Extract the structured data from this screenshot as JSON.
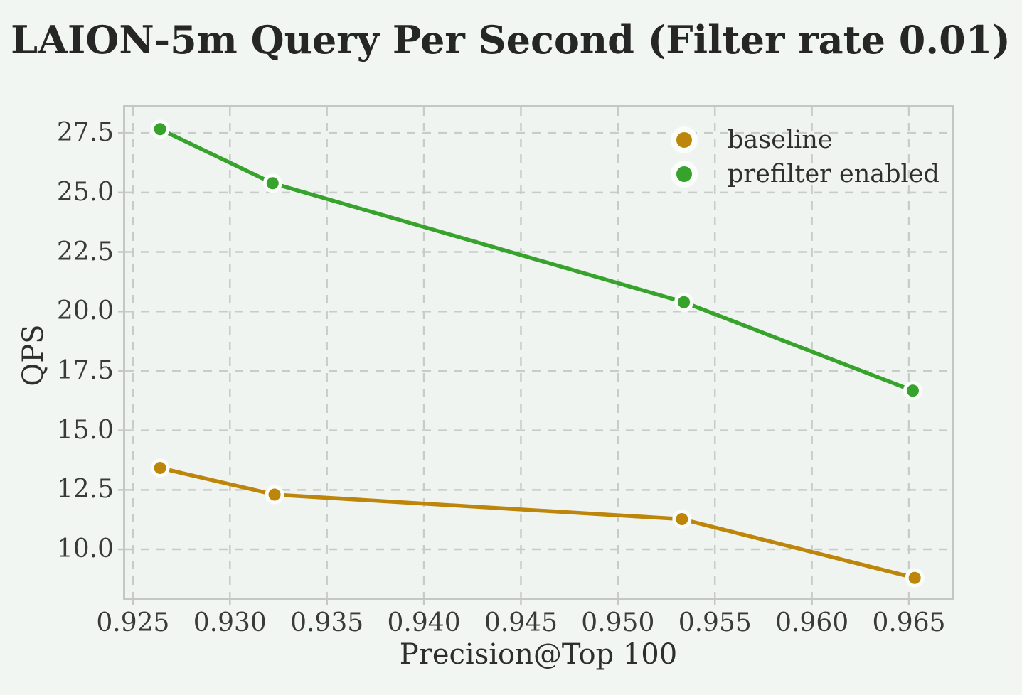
{
  "style": {
    "background": "#f1f6f2",
    "plot_background": "#eff4f0",
    "grid_color": "#c8ccc9",
    "spine_color": "#c4c7c4",
    "marker_edge_color": "#fbfdfa",
    "baseline_color": "#bd860b",
    "prefilter_color": "#37a32c"
  },
  "chart_data": {
    "type": "line",
    "title": "LAION-5m Query Per Second (Filter rate 0.01)",
    "xlabel": "Precision@Top 100",
    "ylabel": "QPS",
    "xlim": [
      0.9246,
      0.9672
    ],
    "ylim": [
      7.94,
      28.58
    ],
    "xticks": [
      0.925,
      0.93,
      0.935,
      0.94,
      0.945,
      0.95,
      0.955,
      0.96,
      0.965
    ],
    "xtick_labels": [
      "0.925",
      "0.930",
      "0.935",
      "0.940",
      "0.945",
      "0.950",
      "0.955",
      "0.960",
      "0.965"
    ],
    "yticks": [
      10.0,
      12.5,
      15.0,
      17.5,
      20.0,
      22.5,
      25.0,
      27.5
    ],
    "ytick_labels": [
      "10.0",
      "12.5",
      "15.0",
      "17.5",
      "20.0",
      "22.5",
      "25.0",
      "27.5"
    ],
    "grid": true,
    "grid_style": "dashed",
    "legend_position": "upper right",
    "series": [
      {
        "name": "baseline",
        "color": "#bd860b",
        "x": [
          0.9264,
          0.9323,
          0.9533,
          0.9653
        ],
        "y": [
          13.42,
          12.3,
          11.27,
          8.8
        ]
      },
      {
        "name": "prefilter enabled",
        "color": "#37a32c",
        "x": [
          0.9264,
          0.9322,
          0.9534,
          0.9652
        ],
        "y": [
          27.66,
          25.39,
          20.39,
          16.67
        ]
      }
    ]
  }
}
